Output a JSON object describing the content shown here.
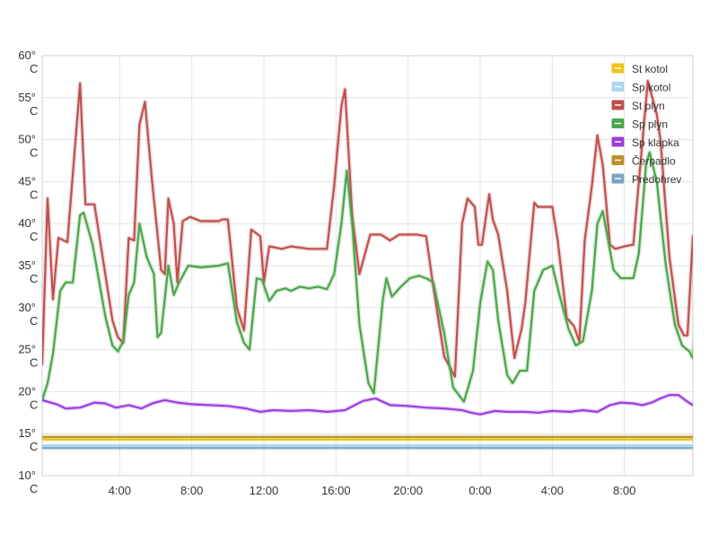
{
  "chart_data": {
    "type": "line",
    "title": "",
    "xlabel": "",
    "ylabel": "",
    "ylim": [
      10,
      60
    ],
    "xlim": [
      -0.3,
      35.8
    ],
    "grid": true,
    "legend_position": "top-right",
    "y_ticks": [
      {
        "value": 60,
        "label_top": "60°",
        "label_bottom": "C"
      },
      {
        "value": 55,
        "label_top": "55°",
        "label_bottom": "C"
      },
      {
        "value": 50,
        "label_top": "50°",
        "label_bottom": "C"
      },
      {
        "value": 45,
        "label_top": "45°",
        "label_bottom": "C"
      },
      {
        "value": 40,
        "label_top": "40°",
        "label_bottom": "C"
      },
      {
        "value": 35,
        "label_top": "35°",
        "label_bottom": "C"
      },
      {
        "value": 30,
        "label_top": "30°",
        "label_bottom": "C"
      },
      {
        "value": 25,
        "label_top": "25°",
        "label_bottom": "C"
      },
      {
        "value": 20,
        "label_top": "20°",
        "label_bottom": "C"
      },
      {
        "value": 15,
        "label_top": "15°",
        "label_bottom": "C"
      },
      {
        "value": 10,
        "label_top": "10°",
        "label_bottom": "C"
      }
    ],
    "x_ticks": [
      {
        "value": 4,
        "label": "4:00"
      },
      {
        "value": 8,
        "label": "8:00"
      },
      {
        "value": 12,
        "label": "12:00"
      },
      {
        "value": 16,
        "label": "16:00"
      },
      {
        "value": 20,
        "label": "20:00"
      },
      {
        "value": 24,
        "label": "0:00"
      },
      {
        "value": 28,
        "label": "4:00"
      },
      {
        "value": 32,
        "label": "8:00"
      }
    ],
    "series": [
      {
        "name": "St kotol",
        "color": "#f0c419",
        "points": [
          [
            -0.3,
            14.3
          ],
          [
            35.8,
            14.3
          ]
        ]
      },
      {
        "name": "Sp kotol",
        "color": "#a8d8f0",
        "points": [
          [
            -0.3,
            13.6
          ],
          [
            35.8,
            13.6
          ]
        ]
      },
      {
        "name": "St plyn",
        "color": "#c0504d",
        "points": [
          [
            -0.3,
            23.3
          ],
          [
            0.0,
            43.0
          ],
          [
            0.3,
            31.0
          ],
          [
            0.6,
            38.3
          ],
          [
            1.1,
            37.8
          ],
          [
            1.8,
            56.7
          ],
          [
            2.1,
            42.3
          ],
          [
            2.6,
            42.3
          ],
          [
            3.2,
            34.0
          ],
          [
            3.6,
            28.5
          ],
          [
            3.9,
            26.5
          ],
          [
            4.2,
            25.8
          ],
          [
            4.5,
            38.3
          ],
          [
            4.8,
            38.0
          ],
          [
            5.1,
            51.8
          ],
          [
            5.4,
            54.5
          ],
          [
            5.8,
            45.0
          ],
          [
            6.3,
            34.5
          ],
          [
            6.5,
            34.0
          ],
          [
            6.7,
            43.0
          ],
          [
            7.0,
            40.0
          ],
          [
            7.2,
            33.0
          ],
          [
            7.5,
            40.3
          ],
          [
            7.9,
            40.8
          ],
          [
            8.5,
            40.3
          ],
          [
            9.5,
            40.3
          ],
          [
            9.7,
            40.5
          ],
          [
            10.0,
            40.5
          ],
          [
            10.5,
            30.0
          ],
          [
            10.9,
            27.3
          ],
          [
            11.3,
            39.3
          ],
          [
            11.8,
            38.5
          ],
          [
            12.0,
            33.0
          ],
          [
            12.3,
            37.3
          ],
          [
            13.0,
            37.0
          ],
          [
            13.5,
            37.3
          ],
          [
            14.5,
            37.0
          ],
          [
            15.5,
            37.0
          ],
          [
            15.9,
            44.5
          ],
          [
            16.3,
            54.0
          ],
          [
            16.5,
            56.0
          ],
          [
            16.9,
            41.0
          ],
          [
            17.3,
            34.0
          ],
          [
            17.9,
            38.7
          ],
          [
            18.5,
            38.7
          ],
          [
            19.0,
            38.0
          ],
          [
            19.5,
            38.7
          ],
          [
            20.5,
            38.7
          ],
          [
            21.0,
            38.5
          ],
          [
            21.4,
            32.5
          ],
          [
            22.0,
            24.2
          ],
          [
            22.6,
            21.8
          ],
          [
            23.0,
            40.0
          ],
          [
            23.3,
            43.0
          ],
          [
            23.7,
            42.0
          ],
          [
            23.9,
            37.5
          ],
          [
            24.1,
            37.5
          ],
          [
            24.5,
            43.5
          ],
          [
            24.7,
            40.5
          ],
          [
            25.0,
            38.7
          ],
          [
            25.5,
            32.0
          ],
          [
            25.9,
            24.0
          ],
          [
            26.3,
            27.5
          ],
          [
            26.5,
            30.5
          ],
          [
            27.0,
            42.5
          ],
          [
            27.2,
            42.0
          ],
          [
            28.0,
            42.0
          ],
          [
            28.3,
            38.0
          ],
          [
            28.8,
            28.8
          ],
          [
            29.2,
            27.8
          ],
          [
            29.5,
            26.0
          ],
          [
            29.8,
            38.0
          ],
          [
            30.2,
            44.5
          ],
          [
            30.5,
            50.5
          ],
          [
            30.8,
            47.0
          ],
          [
            31.2,
            37.5
          ],
          [
            31.5,
            37.0
          ],
          [
            32.0,
            37.3
          ],
          [
            32.5,
            37.5
          ],
          [
            32.8,
            45.0
          ],
          [
            33.3,
            57.0
          ],
          [
            33.8,
            53.0
          ],
          [
            34.0,
            50.0
          ],
          [
            34.5,
            36.0
          ],
          [
            35.0,
            28.0
          ],
          [
            35.3,
            26.7
          ],
          [
            35.5,
            26.7
          ],
          [
            35.8,
            38.5
          ],
          [
            36.1,
            38.0
          ]
        ]
      },
      {
        "name": "Sp plyn",
        "color": "#4aa64a",
        "points": [
          [
            -0.3,
            19.0
          ],
          [
            0.0,
            21.0
          ],
          [
            0.3,
            24.5
          ],
          [
            0.7,
            32.0
          ],
          [
            1.0,
            33.0
          ],
          [
            1.4,
            33.0
          ],
          [
            1.8,
            41.0
          ],
          [
            2.0,
            41.3
          ],
          [
            2.5,
            37.5
          ],
          [
            3.2,
            29.0
          ],
          [
            3.6,
            25.5
          ],
          [
            3.9,
            24.8
          ],
          [
            4.2,
            26.0
          ],
          [
            4.5,
            31.5
          ],
          [
            4.8,
            33.0
          ],
          [
            5.1,
            40.0
          ],
          [
            5.5,
            36.0
          ],
          [
            5.9,
            34.0
          ],
          [
            6.1,
            26.5
          ],
          [
            6.3,
            27.0
          ],
          [
            6.7,
            35.0
          ],
          [
            7.0,
            31.5
          ],
          [
            7.3,
            33.0
          ],
          [
            7.8,
            35.0
          ],
          [
            8.5,
            34.8
          ],
          [
            9.5,
            35.0
          ],
          [
            10.0,
            35.3
          ],
          [
            10.5,
            28.3
          ],
          [
            10.9,
            25.8
          ],
          [
            11.2,
            25.0
          ],
          [
            11.6,
            33.5
          ],
          [
            11.9,
            33.3
          ],
          [
            12.3,
            30.8
          ],
          [
            12.7,
            32.0
          ],
          [
            13.2,
            32.3
          ],
          [
            13.5,
            32.0
          ],
          [
            14.0,
            32.5
          ],
          [
            14.5,
            32.3
          ],
          [
            15.0,
            32.5
          ],
          [
            15.5,
            32.2
          ],
          [
            15.9,
            34.0
          ],
          [
            16.3,
            40.0
          ],
          [
            16.6,
            46.3
          ],
          [
            16.9,
            40.0
          ],
          [
            17.3,
            28.0
          ],
          [
            17.8,
            21.0
          ],
          [
            18.1,
            19.8
          ],
          [
            18.6,
            31.0
          ],
          [
            18.8,
            33.5
          ],
          [
            19.1,
            31.3
          ],
          [
            19.6,
            32.5
          ],
          [
            20.1,
            33.5
          ],
          [
            20.6,
            33.8
          ],
          [
            21.0,
            33.5
          ],
          [
            21.4,
            33.0
          ],
          [
            22.0,
            27.0
          ],
          [
            22.5,
            20.5
          ],
          [
            23.1,
            18.8
          ],
          [
            23.4,
            21.0
          ],
          [
            23.6,
            22.5
          ],
          [
            24.0,
            30.5
          ],
          [
            24.4,
            35.5
          ],
          [
            24.7,
            34.5
          ],
          [
            25.0,
            28.5
          ],
          [
            25.5,
            22.0
          ],
          [
            25.8,
            21.0
          ],
          [
            26.2,
            22.5
          ],
          [
            26.6,
            22.5
          ],
          [
            27.0,
            32.0
          ],
          [
            27.5,
            34.5
          ],
          [
            28.0,
            35.0
          ],
          [
            28.4,
            31.5
          ],
          [
            28.9,
            27.5
          ],
          [
            29.3,
            25.5
          ],
          [
            29.7,
            26.0
          ],
          [
            30.2,
            32.0
          ],
          [
            30.5,
            40.0
          ],
          [
            30.8,
            41.5
          ],
          [
            31.1,
            38.0
          ],
          [
            31.4,
            34.5
          ],
          [
            31.8,
            33.5
          ],
          [
            32.2,
            33.5
          ],
          [
            32.5,
            33.5
          ],
          [
            32.8,
            36.5
          ],
          [
            33.2,
            47.0
          ],
          [
            33.4,
            48.5
          ],
          [
            33.8,
            45.0
          ],
          [
            34.3,
            35.0
          ],
          [
            34.8,
            28.0
          ],
          [
            35.2,
            25.5
          ],
          [
            35.6,
            24.8
          ],
          [
            35.8,
            24.0
          ],
          [
            36.1,
            32.5
          ]
        ]
      },
      {
        "name": "Sp klapka",
        "color": "#9b3ee0",
        "points": [
          [
            -0.3,
            19.0
          ],
          [
            0.5,
            18.5
          ],
          [
            1.0,
            18.0
          ],
          [
            1.8,
            18.1
          ],
          [
            2.6,
            18.7
          ],
          [
            3.2,
            18.6
          ],
          [
            3.8,
            18.1
          ],
          [
            4.5,
            18.4
          ],
          [
            5.2,
            18.0
          ],
          [
            5.8,
            18.6
          ],
          [
            6.5,
            19.0
          ],
          [
            7.2,
            18.7
          ],
          [
            8.0,
            18.5
          ],
          [
            9.0,
            18.4
          ],
          [
            10.0,
            18.3
          ],
          [
            11.0,
            18.0
          ],
          [
            11.8,
            17.6
          ],
          [
            12.5,
            17.8
          ],
          [
            13.5,
            17.7
          ],
          [
            14.5,
            17.8
          ],
          [
            15.5,
            17.6
          ],
          [
            16.5,
            17.8
          ],
          [
            17.5,
            18.9
          ],
          [
            18.2,
            19.2
          ],
          [
            19.0,
            18.4
          ],
          [
            20.0,
            18.3
          ],
          [
            21.0,
            18.1
          ],
          [
            22.0,
            18.0
          ],
          [
            23.0,
            17.8
          ],
          [
            23.5,
            17.5
          ],
          [
            24.0,
            17.3
          ],
          [
            24.8,
            17.7
          ],
          [
            25.5,
            17.6
          ],
          [
            26.5,
            17.6
          ],
          [
            27.2,
            17.5
          ],
          [
            28.0,
            17.7
          ],
          [
            29.0,
            17.6
          ],
          [
            29.7,
            17.8
          ],
          [
            30.5,
            17.6
          ],
          [
            31.2,
            18.4
          ],
          [
            31.8,
            18.7
          ],
          [
            32.5,
            18.6
          ],
          [
            33.0,
            18.4
          ],
          [
            33.5,
            18.7
          ],
          [
            34.0,
            19.2
          ],
          [
            34.5,
            19.6
          ],
          [
            35.0,
            19.6
          ],
          [
            35.5,
            18.8
          ],
          [
            36.1,
            18.0
          ]
        ]
      },
      {
        "name": "Čerpadlo",
        "color": "#b8922a",
        "points": [
          [
            -0.3,
            14.6
          ],
          [
            35.8,
            14.6
          ]
        ]
      },
      {
        "name": "Predohrev",
        "color": "#7aa4c4",
        "points": [
          [
            -0.3,
            13.3
          ],
          [
            35.8,
            13.3
          ]
        ]
      }
    ]
  }
}
